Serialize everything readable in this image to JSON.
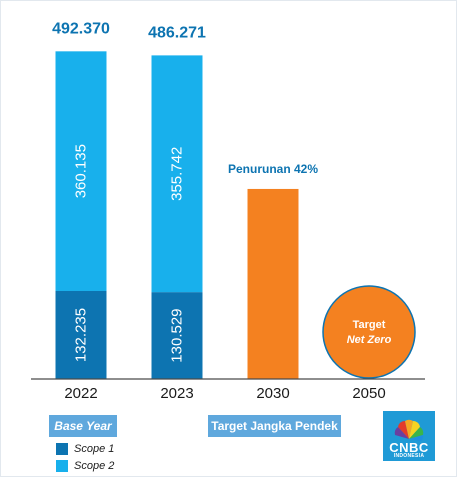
{
  "chart_data": {
    "type": "bar",
    "categories": [
      "2022",
      "2023",
      "2030",
      "2050"
    ],
    "totals": [
      "492.370",
      "486.271",
      "",
      ""
    ],
    "series": [
      {
        "name": "Scope 1",
        "values": [
          132.235,
          130.529,
          null,
          null
        ],
        "labels": [
          "132.235",
          "130.529",
          "",
          ""
        ]
      },
      {
        "name": "Scope 2",
        "values": [
          360.135,
          355.742,
          null,
          null
        ],
        "labels": [
          "360.135",
          "355.742",
          "",
          ""
        ]
      }
    ],
    "target_2030": {
      "value": 285.575,
      "label": "Penurunan 42%"
    },
    "target_2050": {
      "line1": "Target",
      "line2": "Net Zero"
    },
    "ylim": [
      0,
      500
    ]
  },
  "colors": {
    "scope1": "#0d74b1",
    "scope2": "#18b0ec",
    "target": "#f48120",
    "total_text": "#0d74b1",
    "pill": "#5fa8dd"
  },
  "legend": {
    "group1_title": "Base Year",
    "group2_title": "Target Jangka Pendek",
    "items": [
      {
        "label": "Scope 1"
      },
      {
        "label": "Scope 2"
      }
    ]
  },
  "logo": {
    "icon": "nbc-peacock-icon",
    "brand": "CNBC",
    "sub": "INDONESIA"
  }
}
